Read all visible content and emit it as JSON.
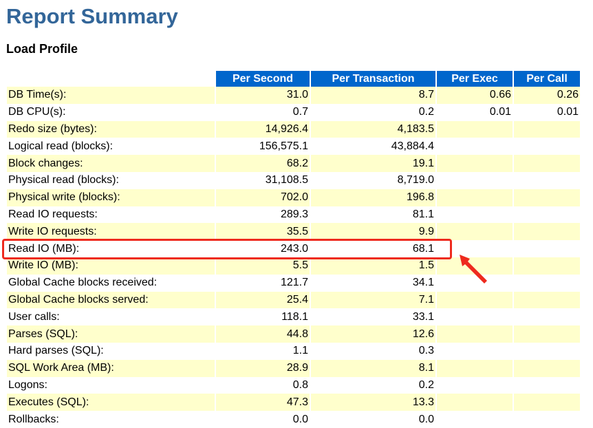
{
  "title": "Report Summary",
  "section": "Load Profile",
  "columns": [
    "Per Second",
    "Per Transaction",
    "Per Exec",
    "Per Call"
  ],
  "rows": [
    {
      "label": "DB Time(s):",
      "per_second": "31.0",
      "per_transaction": "8.7",
      "per_exec": "0.66",
      "per_call": "0.26"
    },
    {
      "label": "DB CPU(s):",
      "per_second": "0.7",
      "per_transaction": "0.2",
      "per_exec": "0.01",
      "per_call": "0.01"
    },
    {
      "label": "Redo size (bytes):",
      "per_second": "14,926.4",
      "per_transaction": "4,183.5",
      "per_exec": "",
      "per_call": ""
    },
    {
      "label": "Logical read (blocks):",
      "per_second": "156,575.1",
      "per_transaction": "43,884.4",
      "per_exec": "",
      "per_call": ""
    },
    {
      "label": "Block changes:",
      "per_second": "68.2",
      "per_transaction": "19.1",
      "per_exec": "",
      "per_call": ""
    },
    {
      "label": "Physical read (blocks):",
      "per_second": "31,108.5",
      "per_transaction": "8,719.0",
      "per_exec": "",
      "per_call": ""
    },
    {
      "label": "Physical write (blocks):",
      "per_second": "702.0",
      "per_transaction": "196.8",
      "per_exec": "",
      "per_call": ""
    },
    {
      "label": "Read IO requests:",
      "per_second": "289.3",
      "per_transaction": "81.1",
      "per_exec": "",
      "per_call": ""
    },
    {
      "label": "Write IO requests:",
      "per_second": "35.5",
      "per_transaction": "9.9",
      "per_exec": "",
      "per_call": ""
    },
    {
      "label": "Read IO (MB):",
      "per_second": "243.0",
      "per_transaction": "68.1",
      "per_exec": "",
      "per_call": ""
    },
    {
      "label": "Write IO (MB):",
      "per_second": "5.5",
      "per_transaction": "1.5",
      "per_exec": "",
      "per_call": ""
    },
    {
      "label": "Global Cache blocks received:",
      "per_second": "121.7",
      "per_transaction": "34.1",
      "per_exec": "",
      "per_call": ""
    },
    {
      "label": "Global Cache blocks served:",
      "per_second": "25.4",
      "per_transaction": "7.1",
      "per_exec": "",
      "per_call": ""
    },
    {
      "label": "User calls:",
      "per_second": "118.1",
      "per_transaction": "33.1",
      "per_exec": "",
      "per_call": ""
    },
    {
      "label": "Parses (SQL):",
      "per_second": "44.8",
      "per_transaction": "12.6",
      "per_exec": "",
      "per_call": ""
    },
    {
      "label": "Hard parses (SQL):",
      "per_second": "1.1",
      "per_transaction": "0.3",
      "per_exec": "",
      "per_call": ""
    },
    {
      "label": "SQL Work Area (MB):",
      "per_second": "28.9",
      "per_transaction": "8.1",
      "per_exec": "",
      "per_call": ""
    },
    {
      "label": "Logons:",
      "per_second": "0.8",
      "per_transaction": "0.2",
      "per_exec": "",
      "per_call": ""
    },
    {
      "label": "Executes (SQL):",
      "per_second": "47.3",
      "per_transaction": "13.3",
      "per_exec": "",
      "per_call": ""
    },
    {
      "label": "Rollbacks:",
      "per_second": "0.0",
      "per_transaction": "0.0",
      "per_exec": "",
      "per_call": ""
    }
  ],
  "highlighted_row": "Read IO (MB):",
  "colors": {
    "title": "#336699",
    "header_bg": "#0066cc",
    "header_text": "#ffffff",
    "stripe": "#ffffcc",
    "annotation": "#ee2a1e"
  }
}
